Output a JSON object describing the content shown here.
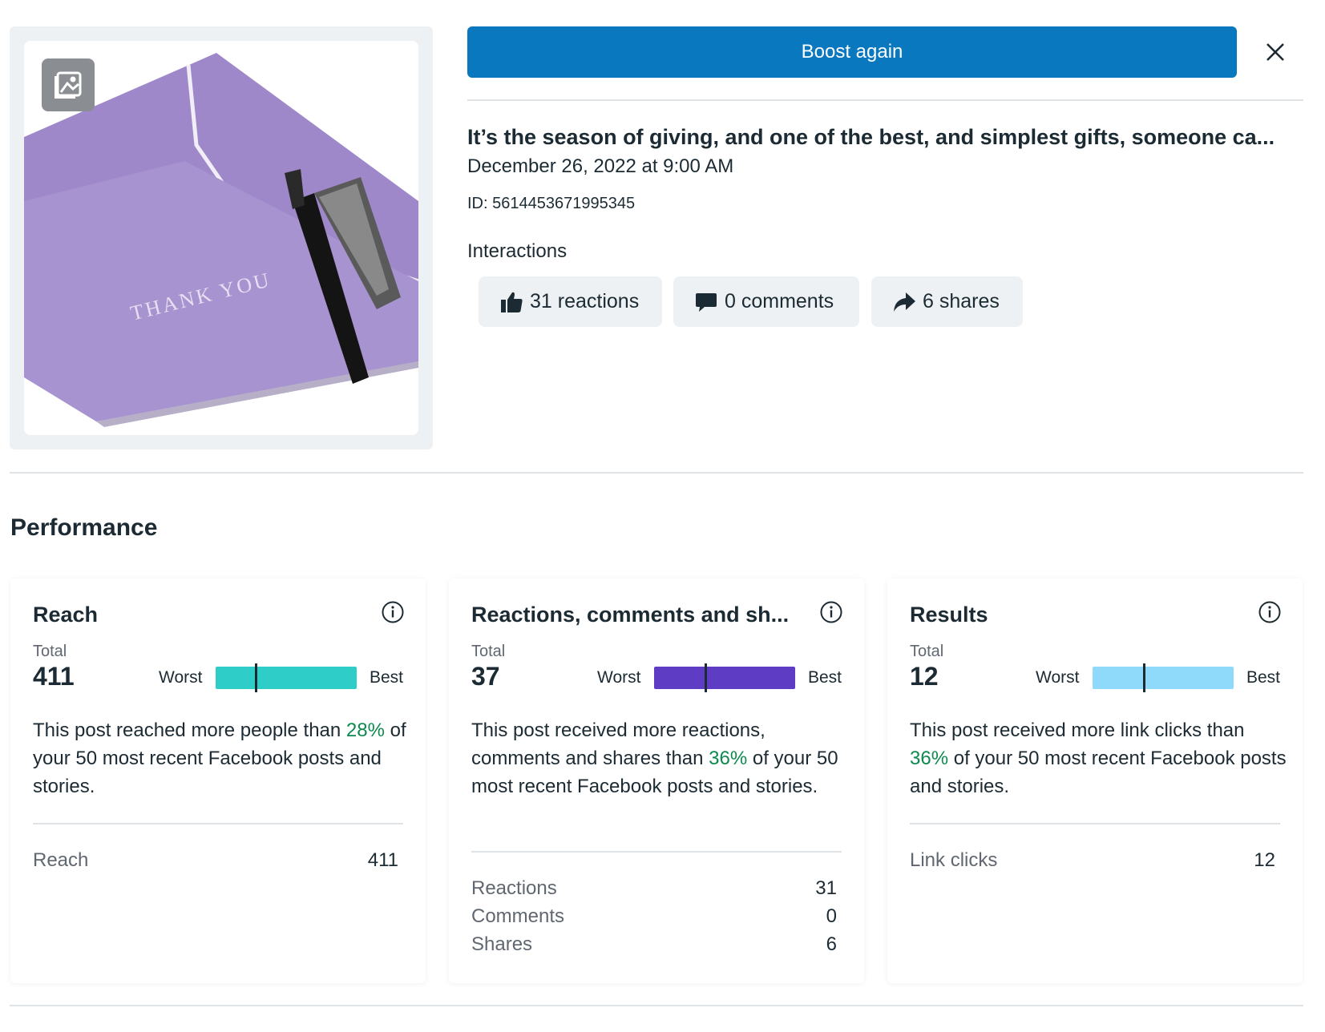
{
  "header": {
    "boost_label": "Boost again"
  },
  "post": {
    "image_text": "THANK YOU",
    "title": "It’s the season of giving, and one of the best, and simplest gifts, someone ca...",
    "date": "December 26, 2022 at 9:00 AM",
    "id": "ID: 5614453671995345"
  },
  "interactions": {
    "label": "Interactions",
    "reactions": "31 reactions",
    "comments": "0 comments",
    "shares": "6 shares"
  },
  "performance": {
    "title": "Performance",
    "cards": [
      {
        "title": "Reach",
        "total_label": "Total",
        "total": "411",
        "worst": "Worst",
        "best": "Best",
        "percentile": 0.28,
        "color": "#2fcdc8",
        "desc_before": "This post reached more people than ",
        "pct": "28%",
        "desc_after": " of your 50 most recent Facebook posts and stories.",
        "rows": [
          {
            "label": "Reach",
            "value": "411"
          }
        ]
      },
      {
        "title": "Reactions, comments and sh...",
        "total_label": "Total",
        "total": "37",
        "worst": "Worst",
        "best": "Best",
        "percentile": 0.36,
        "color": "#5e3dc4",
        "desc_before": "This post received more reactions, comments and shares than ",
        "pct": "36%",
        "desc_after": " of your 50 most recent Facebook posts and stories.",
        "rows": [
          {
            "label": "Reactions",
            "value": "31"
          },
          {
            "label": "Comments",
            "value": "0"
          },
          {
            "label": "Shares",
            "value": "6"
          }
        ]
      },
      {
        "title": "Results",
        "total_label": "Total",
        "total": "12",
        "worst": "Worst",
        "best": "Best",
        "percentile": 0.36,
        "color": "#8fd9fb",
        "desc_before": "This post received more link clicks than ",
        "pct": "36%",
        "desc_after": " of your 50 most recent Facebook posts and stories.",
        "rows": [
          {
            "label": "Link clicks",
            "value": "12"
          }
        ]
      }
    ]
  }
}
